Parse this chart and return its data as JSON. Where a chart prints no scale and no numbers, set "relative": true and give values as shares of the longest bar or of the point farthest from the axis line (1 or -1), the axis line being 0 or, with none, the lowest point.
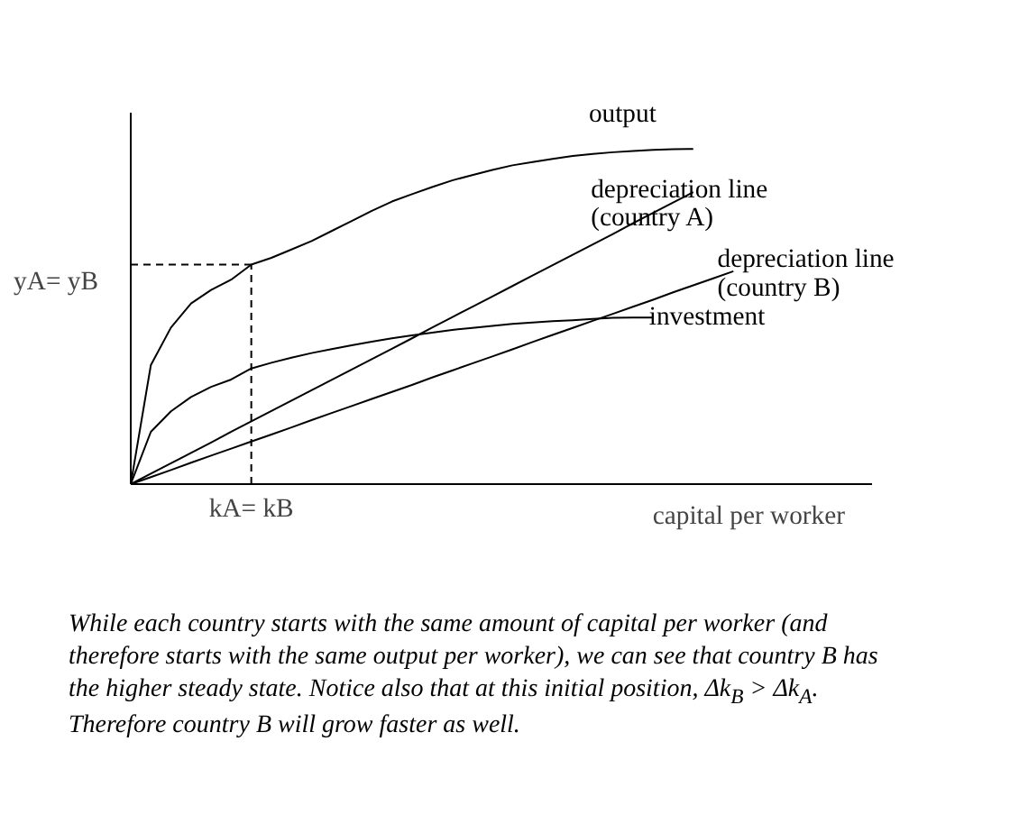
{
  "chart_data": {
    "type": "line",
    "relative": true,
    "xlabel": "capital per worker",
    "categories": [
      null,
      null,
      null,
      null,
      null,
      null,
      null,
      null,
      null,
      null,
      null,
      null,
      null,
      null,
      null,
      null,
      null,
      null,
      null,
      null,
      null,
      null,
      null,
      null,
      null,
      null,
      null,
      null,
      null,
      null,
      null
    ],
    "line_style": "solid",
    "series": [
      {
        "name": "output",
        "color": "#000000",
        "values": [
          0,
          0.355,
          0.467,
          0.539,
          0.579,
          0.61,
          0.655,
          0.675,
          0.7,
          0.725,
          0.755,
          0.785,
          0.815,
          0.843,
          0.865,
          0.886,
          0.906,
          0.922,
          0.937,
          0.951,
          0.961,
          0.97,
          0.979,
          0.985,
          0.99,
          0.994,
          0.997,
          0.999,
          1.0,
          null,
          null
        ]
      },
      {
        "name": "depreciation line\n(country A)",
        "color": "#000000",
        "values": [
          0,
          0.031,
          0.062,
          0.093,
          0.124,
          0.156,
          0.187,
          0.218,
          0.249,
          0.28,
          0.311,
          0.342,
          0.373,
          0.404,
          0.435,
          0.467,
          0.498,
          0.529,
          0.56,
          0.591,
          0.622,
          0.653,
          0.684,
          0.715,
          0.746,
          0.778,
          0.809,
          0.84,
          0.871,
          null,
          null
        ]
      },
      {
        "name": "depreciation line\n(country B)",
        "color": "#000000",
        "values": [
          0,
          0.021,
          0.042,
          0.064,
          0.085,
          0.106,
          0.127,
          0.148,
          0.169,
          0.191,
          0.212,
          0.233,
          0.254,
          0.275,
          0.296,
          0.318,
          0.339,
          0.36,
          0.381,
          0.402,
          0.424,
          0.445,
          0.466,
          0.487,
          0.508,
          0.529,
          0.55,
          0.572,
          0.593,
          0.614,
          0.635
        ]
      },
      {
        "name": "investment",
        "color": "#000000",
        "values": [
          0,
          0.156,
          0.217,
          0.26,
          0.29,
          0.312,
          0.345,
          0.362,
          0.377,
          0.391,
          0.403,
          0.414,
          0.425,
          0.435,
          0.444,
          0.452,
          0.46,
          0.466,
          0.472,
          0.478,
          0.482,
          0.486,
          0.489,
          0.493,
          0.496,
          0.497,
          0.497,
          null,
          null,
          null,
          null
        ]
      }
    ],
    "ref_lines": [
      {
        "axis": "y",
        "value": 0.655,
        "label": "yA= yB",
        "line_style": "dashed",
        "color": "#000000"
      }
    ],
    "annotations": [
      {
        "text": "kA= kB"
      },
      "While each country starts with the same amount of capital per worker (and therefore starts with the same output per worker), we can see that country B has the higher steady state.  Notice also that at this initial position, Δk$_{B}$ > Δk$_{A}$.  Therefore country B will grow faster as well."
    ]
  }
}
